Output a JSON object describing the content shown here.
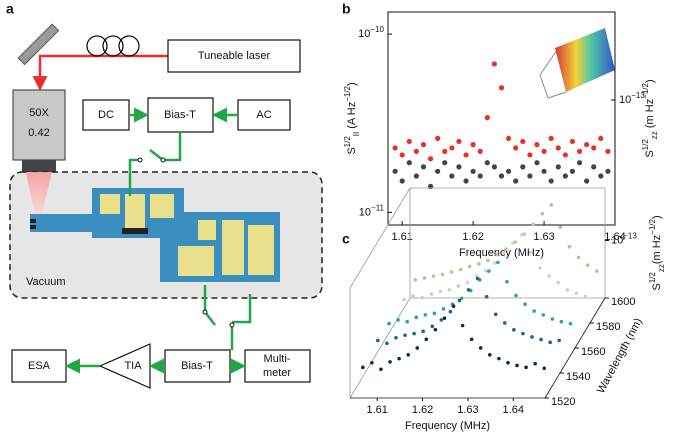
{
  "diagram": {
    "label": "a",
    "laser": "Tuneable laser",
    "objective": [
      "50X",
      "0.42"
    ],
    "dc": "DC",
    "bias_t_top": "Bias-T",
    "ac": "AC",
    "vacuum": "Vacuum",
    "esa": "ESA",
    "tia": "TIA",
    "bias_t_bottom": "Bias-T",
    "multimeter": [
      "Multi-",
      "meter"
    ]
  },
  "chart_data": [
    {
      "type": "scatter",
      "panel": "b",
      "log_y": true,
      "xlabel": "Frequency (MHz)",
      "ylabel": [
        {
          "text": "S",
          "pos": "base"
        },
        {
          "text": "1/2",
          "pos": "sup"
        },
        {
          "text": "II",
          "pos": "sub"
        },
        {
          "text": " (A Hz",
          "pos": "base"
        },
        {
          "text": "−1/2",
          "pos": "sup"
        },
        {
          "text": ")",
          "pos": "base"
        }
      ],
      "y2label": [
        {
          "text": "S",
          "pos": "base"
        },
        {
          "text": "1/2",
          "pos": "sup"
        },
        {
          "text": "zz",
          "pos": "sub"
        },
        {
          "text": " (m Hz",
          "pos": "base"
        },
        {
          "text": "−1/2",
          "pos": "sup"
        },
        {
          "text": ")",
          "pos": "base"
        }
      ],
      "xlim": [
        1.608,
        1.64
      ],
      "xticks": [
        1.61,
        1.62,
        1.63,
        1.64
      ],
      "ylim": [
        8.5e-12,
        1.33e-10
      ],
      "yticks": [
        {
          "value": 1e-10,
          "label": "10",
          "exponent": "−10"
        },
        {
          "value": 1e-11,
          "label": "10",
          "exponent": "−11"
        }
      ],
      "y2lim": [
        2e-14,
        3.1e-13
      ],
      "y2ticks": [
        {
          "value": 1e-13,
          "label": "10",
          "exponent": "−13"
        }
      ],
      "x": [
        1.609,
        1.61,
        1.611,
        1.612,
        1.613,
        1.614,
        1.615,
        1.616,
        1.617,
        1.618,
        1.619,
        1.62,
        1.621,
        1.622,
        1.623,
        1.624,
        1.625,
        1.626,
        1.627,
        1.628,
        1.629,
        1.63,
        1.631,
        1.632,
        1.633,
        1.634,
        1.635,
        1.636,
        1.637,
        1.638,
        1.639
      ],
      "series": [
        {
          "color": "#e8302c",
          "values": [
            2.3e-11,
            2.1e-11,
            2.5e-11,
            2.2e-11,
            2.4e-11,
            2e-11,
            2.6e-11,
            2.2e-11,
            2.3e-11,
            2.5e-11,
            2.1e-11,
            2.4e-11,
            2.2e-11,
            3.4e-11,
            6.8e-11,
            5e-11,
            2.6e-11,
            2.3e-11,
            2.5e-11,
            2.1e-11,
            2.4e-11,
            2.2e-11,
            2.6e-11,
            2.3e-11,
            2.1e-11,
            2.5e-11,
            2.2e-11,
            2.4e-11,
            2.3e-11,
            2.6e-11,
            2.2e-11
          ]
        },
        {
          "color": "#444444",
          "values": [
            1.7e-11,
            1.5e-11,
            1.9e-11,
            1.6e-11,
            1.8e-11,
            1.4e-11,
            1.7e-11,
            1.9e-11,
            1.6e-11,
            1.8e-11,
            1.5e-11,
            1.7e-11,
            1.6e-11,
            1.9e-11,
            1.8e-11,
            1.6e-11,
            1.7e-11,
            1.5e-11,
            1.8e-11,
            1.6e-11,
            1.9e-11,
            1.7e-11,
            1.5e-11,
            1.8e-11,
            1.6e-11,
            1.7e-11,
            1.9e-11,
            1.5e-11,
            1.8e-11,
            1.6e-11,
            1.7e-11
          ]
        }
      ]
    },
    {
      "type": "waterfall",
      "panel": "c",
      "log_y": true,
      "xlabel": "Frequency (MHz)",
      "zlabel": "Wavelength (nm)",
      "ylabel": [
        {
          "text": "S",
          "pos": "base"
        },
        {
          "text": "1/2",
          "pos": "sup"
        },
        {
          "text": "zz",
          "pos": "sub"
        },
        {
          "text": "(m Hz",
          "pos": "base"
        },
        {
          "text": "−1/2",
          "pos": "sup"
        },
        {
          "text": ")",
          "pos": "base"
        }
      ],
      "xlim": [
        1.604,
        1.647
      ],
      "xticks": [
        1.61,
        1.62,
        1.63,
        1.64
      ],
      "zlim": [
        1520,
        1600
      ],
      "zticks": [
        1520,
        1540,
        1560,
        1580,
        1600
      ],
      "ylim": [
        3e-14,
        3e-13
      ],
      "yticks": [
        {
          "value": 1e-13,
          "label": "10",
          "exponent": "−13"
        }
      ],
      "x": [
        1.606,
        1.608,
        1.61,
        1.612,
        1.614,
        1.616,
        1.618,
        1.62,
        1.622,
        1.624,
        1.626,
        1.628,
        1.63,
        1.632,
        1.634,
        1.636,
        1.638,
        1.64,
        1.642,
        1.644,
        1.646
      ],
      "series": [
        {
          "wavelength": 1595,
          "color": "#c9b8a3",
          "values": [
            5e-14,
            5.2e-14,
            5.4e-14,
            5.6e-14,
            5.9e-14,
            6.2e-14,
            6.6e-14,
            7e-14,
            7.5e-14,
            8.5e-14,
            9.5e-14,
            1.1e-13,
            1.3e-13,
            1.6e-13,
            2e-13,
            2.4e-13,
            1.5e-13,
            1e-13,
            8e-14,
            6.8e-14,
            6e-14
          ]
        },
        {
          "wavelength": 1580,
          "color": "#d8cfc2",
          "values": [
            4.9e-14,
            5.3e-14,
            5.1e-14,
            5.5e-14,
            5.8e-14,
            6e-14,
            6.5e-14,
            7e-14,
            8e-14,
            9e-14,
            1.05e-13,
            1.3e-13,
            1.6e-13,
            1.9e-13,
            1.3e-13,
            9.5e-14,
            8e-14,
            7e-14,
            6e-14,
            5.6e-14,
            5.2e-14
          ]
        },
        {
          "wavelength": 1560,
          "color": "#2aa5a6",
          "values": [
            5e-14,
            5.4e-14,
            5.2e-14,
            5.7e-14,
            6e-14,
            6.2e-14,
            6.8e-14,
            7.5e-14,
            8.5e-14,
            1e-13,
            1.25e-13,
            1.5e-13,
            1.8e-13,
            1.2e-13,
            9e-14,
            7.5e-14,
            6.5e-14,
            6e-14,
            5.5e-14,
            5.2e-14,
            5e-14
          ]
        },
        {
          "wavelength": 1545,
          "color": "#1c6488",
          "values": [
            5.2e-14,
            4.9e-14,
            5.5e-14,
            5.8e-14,
            6e-14,
            6.3e-14,
            7e-14,
            8e-14,
            9.5e-14,
            1.2e-13,
            1.5e-13,
            1.9e-13,
            1.3e-13,
            9e-14,
            7.5e-14,
            6.5e-14,
            6e-14,
            5.6e-14,
            5.3e-14,
            5e-14,
            5.2e-14
          ]
        },
        {
          "wavelength": 1525,
          "color": "#0c2c4e",
          "values": [
            5e-14,
            5.5e-14,
            4.8e-14,
            5.6e-14,
            6e-14,
            6.5e-14,
            7.5e-14,
            9e-14,
            1.1e-13,
            1.4e-13,
            1.8e-13,
            1.2e-13,
            9e-14,
            7.5e-14,
            6.5e-14,
            6e-14,
            5.5e-14,
            5.2e-14,
            5e-14,
            5.4e-14,
            4.9e-14
          ]
        }
      ]
    }
  ]
}
